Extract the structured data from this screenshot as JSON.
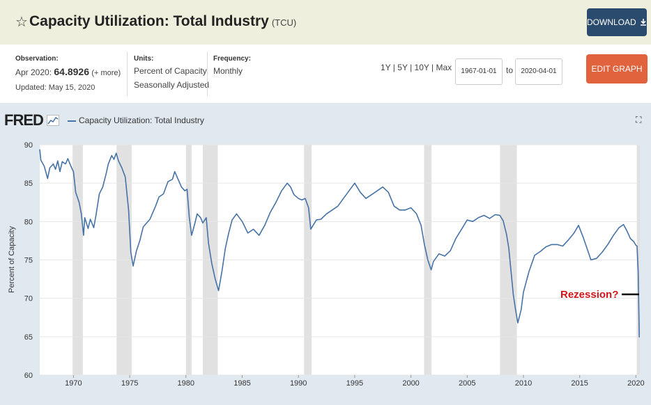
{
  "header": {
    "title": "Capacity Utilization: Total Industry",
    "code": "(TCU)",
    "download_label": "DOWNLOAD",
    "star_icon": "star-icon",
    "download_icon": "download-icon"
  },
  "info": {
    "observation_label": "Observation:",
    "observation_date": "Apr 2020:",
    "observation_value": "64.8926",
    "observation_more": "(+ more)",
    "updated": "Updated: May 15, 2020",
    "units_label": "Units:",
    "units_line1": "Percent of Capacity,",
    "units_line2": "Seasonally Adjusted",
    "frequency_label": "Frequency:",
    "frequency_value": "Monthly",
    "range_links": [
      "1Y",
      "5Y",
      "10Y",
      "Max"
    ],
    "start_date": "1967-01-01",
    "to_label": "to",
    "end_date": "2020-04-01",
    "edit_label": "EDIT GRAPH",
    "edit_icon": "gear-icon"
  },
  "legend": {
    "logo": "FRED",
    "series_name": "Capacity Utilization: Total Industry"
  },
  "chart_data": {
    "type": "line",
    "title": "Capacity Utilization: Total Industry",
    "xlabel": "",
    "ylabel": "Percent of Capacity",
    "xlim": [
      1967.0,
      2020.35
    ],
    "ylim": [
      60,
      90
    ],
    "yticks": [
      60,
      65,
      70,
      75,
      80,
      85,
      90
    ],
    "xticks": [
      1970,
      1975,
      1980,
      1985,
      1990,
      1995,
      2000,
      2005,
      2010,
      2015,
      2020
    ],
    "line_color": "#4572a7",
    "recessions": [
      [
        1969.92,
        1970.83
      ],
      [
        1973.83,
        1975.17
      ],
      [
        1980.0,
        1980.5
      ],
      [
        1981.5,
        1982.83
      ],
      [
        1990.5,
        1991.17
      ],
      [
        2001.17,
        2001.83
      ],
      [
        2007.92,
        2009.42
      ],
      [
        2020.08,
        2020.35
      ]
    ],
    "series": [
      {
        "name": "Capacity Utilization: Total Industry",
        "x": [
          1967.0,
          1967.1,
          1967.4,
          1967.7,
          1967.9,
          1968.2,
          1968.4,
          1968.6,
          1968.8,
          1969.0,
          1969.3,
          1969.5,
          1969.8,
          1970.0,
          1970.2,
          1970.5,
          1970.7,
          1970.9,
          1971.0,
          1971.3,
          1971.5,
          1971.8,
          1972.0,
          1972.3,
          1972.6,
          1972.9,
          1973.1,
          1973.4,
          1973.6,
          1973.8,
          1974.0,
          1974.3,
          1974.6,
          1974.9,
          1975.1,
          1975.3,
          1975.6,
          1975.9,
          1976.2,
          1976.5,
          1976.8,
          1977.0,
          1977.3,
          1977.6,
          1978.0,
          1978.4,
          1978.8,
          1979.0,
          1979.3,
          1979.6,
          1979.9,
          1980.1,
          1980.3,
          1980.5,
          1980.8,
          1981.0,
          1981.3,
          1981.5,
          1981.8,
          1982.0,
          1982.3,
          1982.6,
          1982.9,
          1983.2,
          1983.5,
          1983.8,
          1984.1,
          1984.5,
          1985.0,
          1985.5,
          1986.0,
          1986.5,
          1987.0,
          1987.5,
          1988.0,
          1988.5,
          1989.0,
          1989.3,
          1989.6,
          1990.0,
          1990.3,
          1990.6,
          1990.9,
          1991.1,
          1991.3,
          1991.6,
          1992.0,
          1992.5,
          1993.0,
          1993.5,
          1994.0,
          1994.5,
          1995.0,
          1995.5,
          1996.0,
          1996.5,
          1997.0,
          1997.5,
          1998.0,
          1998.5,
          1999.0,
          1999.5,
          2000.0,
          2000.5,
          2000.9,
          2001.2,
          2001.5,
          2001.8,
          2002.0,
          2002.5,
          2003.0,
          2003.5,
          2004.0,
          2004.5,
          2005.0,
          2005.5,
          2006.0,
          2006.5,
          2007.0,
          2007.5,
          2007.9,
          2008.2,
          2008.5,
          2008.7,
          2008.9,
          2009.1,
          2009.3,
          2009.5,
          2009.8,
          2010.0,
          2010.5,
          2011.0,
          2011.5,
          2012.0,
          2012.5,
          2013.0,
          2013.5,
          2014.0,
          2014.5,
          2014.9,
          2015.3,
          2015.7,
          2016.0,
          2016.5,
          2017.0,
          2017.5,
          2018.0,
          2018.5,
          2018.9,
          2019.2,
          2019.5,
          2019.8,
          2020.0,
          2020.1,
          2020.2,
          2020.3
        ],
        "values": [
          89.4,
          88.0,
          87.2,
          85.6,
          87.0,
          87.5,
          86.8,
          87.9,
          86.5,
          87.8,
          87.5,
          88.2,
          87.1,
          86.5,
          83.8,
          82.5,
          81.0,
          78.2,
          80.5,
          79.1,
          80.3,
          79.2,
          80.8,
          83.6,
          84.5,
          86.2,
          87.5,
          88.6,
          88.1,
          88.9,
          87.9,
          87.0,
          85.8,
          81.5,
          76.0,
          74.2,
          76.2,
          77.5,
          79.3,
          79.8,
          80.3,
          81.0,
          82.0,
          83.2,
          83.6,
          85.2,
          85.5,
          86.5,
          85.5,
          84.5,
          84.0,
          84.2,
          80.5,
          78.2,
          79.8,
          81.0,
          80.5,
          79.8,
          80.5,
          77.2,
          74.5,
          72.5,
          71.0,
          73.5,
          76.5,
          78.5,
          80.2,
          81.0,
          80.0,
          78.5,
          79.0,
          78.2,
          79.5,
          81.2,
          82.5,
          84.0,
          85.0,
          84.5,
          83.5,
          83.0,
          82.8,
          83.0,
          81.8,
          79.0,
          79.5,
          80.2,
          80.3,
          81.0,
          81.5,
          82.0,
          83.0,
          84.0,
          85.0,
          83.8,
          83.0,
          83.5,
          84.0,
          84.5,
          83.8,
          82.0,
          81.5,
          81.5,
          81.8,
          81.0,
          79.5,
          77.0,
          75.0,
          73.7,
          74.8,
          75.8,
          75.5,
          76.2,
          77.8,
          79.0,
          80.2,
          80.0,
          80.5,
          80.8,
          80.4,
          80.9,
          80.8,
          80.1,
          78.3,
          76.5,
          73.5,
          70.5,
          68.5,
          66.8,
          68.5,
          70.8,
          73.5,
          75.6,
          76.1,
          76.7,
          77.0,
          77.0,
          76.8,
          77.6,
          78.5,
          79.5,
          78.0,
          76.3,
          75.0,
          75.2,
          76.0,
          77.0,
          78.2,
          79.2,
          79.6,
          78.8,
          77.8,
          77.4,
          76.9,
          76.8,
          73.5,
          64.9
        ]
      }
    ],
    "annotations": [
      {
        "text": "Rezession?",
        "color": "#d0161b"
      }
    ]
  }
}
